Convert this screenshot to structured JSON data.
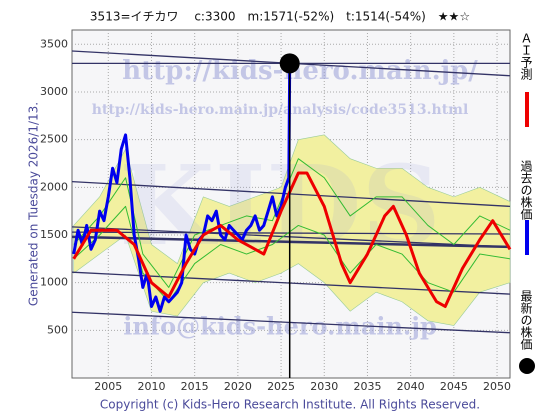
{
  "chart_data": {
    "type": "line",
    "title": "3513=イチカワ　 c:3300　m:1571(-52%)　t:1514(-54%)　★★☆",
    "side_note": "Generated on Tuesday 2026/1/13.",
    "copyright": "Copyright (c) Kids-Hero Research Institute. All Rights Reserved.",
    "watermarks": [
      "http://kids-hero.main.jp/",
      "http://kids-hero.main.jp/analysis/code3513.html",
      "info@kids-hero.main.jp",
      "KIDS"
    ],
    "xlim": [
      2000.8,
      2051.5
    ],
    "ylim": [
      0,
      3650
    ],
    "xticks": [
      2005,
      2010,
      2015,
      2020,
      2025,
      2030,
      2035,
      2040,
      2045,
      2050
    ],
    "yticks": [
      500,
      1000,
      1500,
      2000,
      2500,
      3000,
      3500
    ],
    "grid": true,
    "band": {
      "color": "#f2f0a0",
      "x": [
        2001,
        2004,
        2007,
        2010,
        2013,
        2016,
        2019,
        2022,
        2025,
        2027,
        2030,
        2033,
        2036,
        2039,
        2042,
        2045,
        2048,
        2051.5
      ],
      "upper": [
        1600,
        1900,
        2400,
        1400,
        1200,
        1900,
        1800,
        1900,
        2000,
        2500,
        2550,
        2300,
        2200,
        2200,
        2000,
        1900,
        2000,
        1850
      ],
      "lower": [
        1100,
        1300,
        1500,
        700,
        650,
        1000,
        1100,
        1000,
        1100,
        1200,
        1000,
        700,
        900,
        800,
        600,
        550,
        900,
        1000
      ]
    },
    "series": [
      {
        "color": "#33bb33",
        "x": [
          2001,
          2004,
          2007,
          2009,
          2012,
          2015,
          2018,
          2021,
          2024,
          2027,
          2030,
          2033,
          2036,
          2039,
          2042,
          2045,
          2048,
          2051.5
        ],
        "values": [
          1400,
          1700,
          2100,
          1300,
          950,
          1500,
          1600,
          1700,
          1650,
          2300,
          2100,
          1700,
          1900,
          1900,
          1600,
          1400,
          1700,
          1550
        ]
      },
      {
        "color": "#33bb33",
        "x": [
          2001,
          2004,
          2007,
          2009,
          2012,
          2015,
          2018,
          2021,
          2024,
          2027,
          2030,
          2033,
          2036,
          2039,
          2042,
          2045,
          2048,
          2051.5
        ],
        "values": [
          1250,
          1500,
          1800,
          1100,
          800,
          1200,
          1400,
          1300,
          1400,
          1600,
          1500,
          1100,
          1400,
          1300,
          1000,
          900,
          1300,
          1250
        ]
      },
      {
        "name": "過去の株価",
        "color": "#0000ee",
        "x": [
          2001,
          2001.5,
          2002,
          2002.5,
          2003,
          2003.5,
          2004,
          2004.5,
          2005,
          2005.5,
          2006,
          2006.5,
          2007,
          2007.5,
          2008,
          2008.5,
          2009,
          2009.5,
          2010,
          2010.5,
          2011,
          2011.5,
          2012,
          2012.5,
          2013,
          2013.5,
          2014,
          2014.5,
          2015,
          2015.5,
          2016,
          2016.5,
          2017,
          2017.5,
          2018,
          2018.5,
          2019,
          2019.5,
          2020,
          2020.5,
          2021,
          2021.5,
          2022,
          2022.5,
          2023,
          2023.5,
          2024,
          2024.5,
          2025,
          2025.5,
          2025.9,
          2026
        ],
        "values": [
          1300,
          1550,
          1400,
          1600,
          1350,
          1450,
          1750,
          1650,
          1900,
          2200,
          2050,
          2400,
          2550,
          2100,
          1500,
          1250,
          950,
          1100,
          750,
          850,
          700,
          850,
          800,
          850,
          900,
          1000,
          1500,
          1350,
          1300,
          1450,
          1500,
          1700,
          1650,
          1750,
          1500,
          1450,
          1600,
          1550,
          1500,
          1450,
          1550,
          1600,
          1700,
          1550,
          1600,
          1750,
          1900,
          1700,
          1800,
          2000,
          2100,
          3300
        ]
      },
      {
        "name": "ＡＩ予測",
        "color": "#ee0000",
        "x": [
          2001,
          2003,
          2006,
          2008,
          2010,
          2012,
          2014,
          2016,
          2018,
          2020,
          2023,
          2025,
          2027,
          2028,
          2030,
          2032,
          2033,
          2035,
          2037,
          2038,
          2039.5,
          2041,
          2043,
          2044,
          2046,
          2048,
          2049.5,
          2051.5
        ],
        "values": [
          1250,
          1550,
          1550,
          1400,
          1000,
          850,
          1200,
          1500,
          1600,
          1450,
          1300,
          1750,
          2150,
          2150,
          1800,
          1200,
          1000,
          1300,
          1700,
          1800,
          1500,
          1100,
          800,
          750,
          1150,
          1450,
          1650,
          1350
        ]
      }
    ],
    "trend_lines": {
      "color": "#333366",
      "x": [
        2000.8,
        2051.5
      ],
      "lines": [
        [
          3430,
          3170
        ],
        [
          3300,
          3300
        ],
        [
          2060,
          1800
        ],
        [
          1585,
          1375
        ],
        [
          1530,
          1510
        ],
        [
          1480,
          1375
        ],
        [
          1110,
          880
        ],
        [
          690,
          475
        ]
      ]
    },
    "latest": {
      "name": "最新の株価",
      "color": "#000000",
      "x": 2026,
      "value": 3300
    }
  }
}
